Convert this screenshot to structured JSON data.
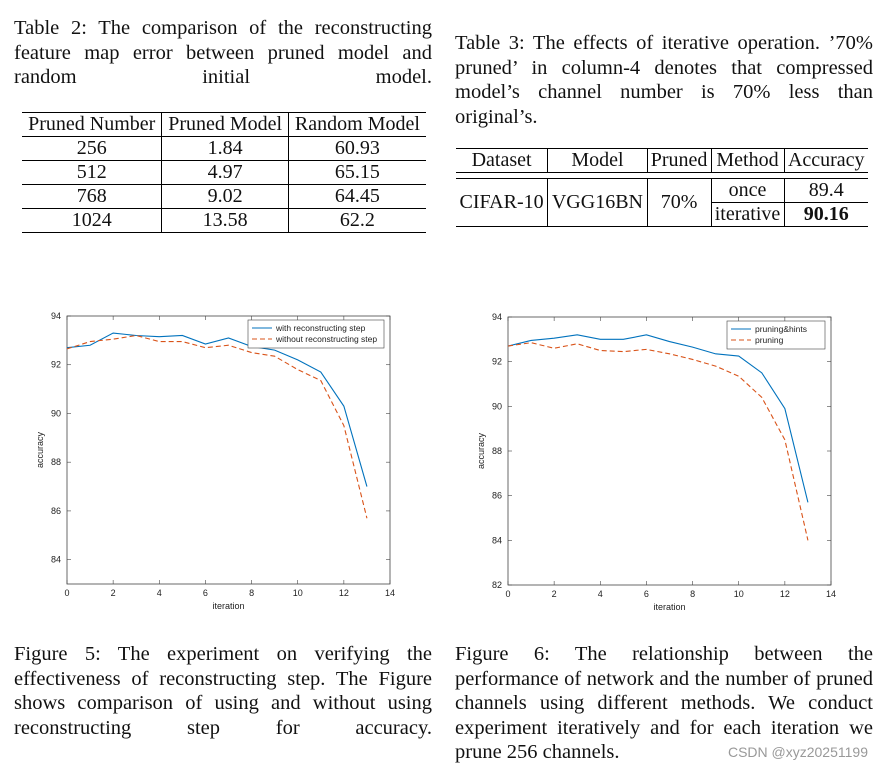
{
  "table2": {
    "caption": "Table 2: The comparison of the reconstructing feature map error between pruned model and random initial model.",
    "headers": [
      "Pruned Number",
      "Pruned Model",
      "Random Model"
    ],
    "rows": [
      [
        "256",
        "1.84",
        "60.93"
      ],
      [
        "512",
        "4.97",
        "65.15"
      ],
      [
        "768",
        "9.02",
        "64.45"
      ],
      [
        "1024",
        "13.58",
        "62.2"
      ]
    ]
  },
  "table3": {
    "caption": "Table 3: The effects of iterative operation. ’70% pruned’ in column-4 denotes that compressed model’s channel number is 70% less than original’s.",
    "headers": [
      "Dataset",
      "Model",
      "Pruned",
      "Method",
      "Accuracy"
    ],
    "dataset": "CIFAR-10",
    "model": "VGG16BN",
    "pruned": "70%",
    "rows": [
      {
        "method": "once",
        "accuracy": "89.4"
      },
      {
        "method": "iterative",
        "accuracy": "90.16"
      }
    ]
  },
  "figure5": {
    "caption": "Figure 5: The experiment on verifying the effectiveness of reconstructing step. The Figure shows comparison of using and without using reconstructing step for accuracy."
  },
  "figure6": {
    "caption": "Figure 6: The relationship between the performance of network and the number of pruned channels using different methods. We conduct experiment iteratively and for each iteration we prune 256 channels."
  },
  "watermark": "CSDN @xyz20251199",
  "colors": {
    "blue": "#0072BD",
    "red": "#D95319"
  },
  "chart_data": [
    {
      "type": "line",
      "xlabel": "iteration",
      "ylabel": "accuracy",
      "xlim": [
        0,
        14
      ],
      "ylim": [
        83,
        94
      ],
      "xticks": [
        0,
        2,
        4,
        6,
        8,
        10,
        12,
        14
      ],
      "yticks": [
        84,
        86,
        88,
        90,
        92,
        94
      ],
      "legend": "top-right",
      "grid": false,
      "series": [
        {
          "name": "with reconstructing step",
          "style": "solid",
          "color": "#0072BD",
          "x": [
            0,
            1,
            2,
            3,
            4,
            5,
            6,
            7,
            8,
            9,
            10,
            11,
            12,
            13
          ],
          "y": [
            92.7,
            92.8,
            93.3,
            93.2,
            93.15,
            93.2,
            92.85,
            93.1,
            92.75,
            92.6,
            92.2,
            91.7,
            90.3,
            87.0
          ]
        },
        {
          "name": "without reconstructing step",
          "style": "dashed",
          "color": "#D95319",
          "x": [
            0,
            1,
            2,
            3,
            4,
            5,
            6,
            7,
            8,
            9,
            10,
            11,
            12,
            13
          ],
          "y": [
            92.65,
            92.95,
            93.05,
            93.2,
            92.95,
            92.95,
            92.7,
            92.8,
            92.5,
            92.35,
            91.8,
            91.35,
            89.5,
            85.7
          ]
        }
      ]
    },
    {
      "type": "line",
      "xlabel": "iteration",
      "ylabel": "accuracy",
      "xlim": [
        0,
        14
      ],
      "ylim": [
        82,
        94
      ],
      "xticks": [
        0,
        2,
        4,
        6,
        8,
        10,
        12,
        14
      ],
      "yticks": [
        82,
        84,
        86,
        88,
        90,
        92,
        94
      ],
      "legend": "top-right",
      "grid": false,
      "series": [
        {
          "name": "pruning&hints",
          "style": "solid",
          "color": "#0072BD",
          "x": [
            0,
            1,
            2,
            3,
            4,
            5,
            6,
            7,
            8,
            9,
            10,
            11,
            12,
            13
          ],
          "y": [
            92.7,
            92.95,
            93.05,
            93.2,
            93.0,
            93.0,
            93.2,
            92.9,
            92.65,
            92.35,
            92.25,
            91.5,
            89.9,
            85.7
          ]
        },
        {
          "name": "pruning",
          "style": "dashed",
          "color": "#D95319",
          "x": [
            0,
            1,
            2,
            3,
            4,
            5,
            6,
            7,
            8,
            9,
            10,
            11,
            12,
            13
          ],
          "y": [
            92.7,
            92.85,
            92.6,
            92.8,
            92.5,
            92.45,
            92.55,
            92.35,
            92.1,
            91.8,
            91.35,
            90.4,
            88.5,
            84.0
          ]
        }
      ]
    }
  ]
}
